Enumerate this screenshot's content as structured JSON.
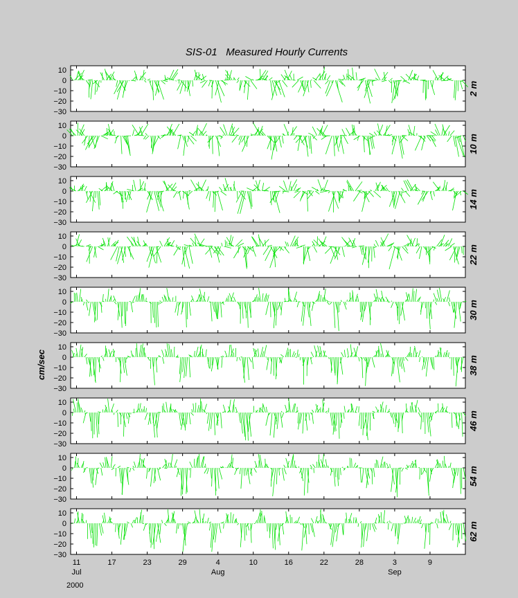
{
  "title": "SIS-01   Measured Hourly Currents",
  "ylabel": "cm/sec",
  "year": "2000",
  "chart_data": {
    "type": "stick-vector",
    "title": "SIS-01   Measured Hourly Currents",
    "ylabel": "cm/sec",
    "ylim": [
      -30,
      14
    ],
    "yticks": [
      10,
      0,
      -10,
      -20,
      -30
    ],
    "x_start": "2000-07-10",
    "x_end": "2000-09-15",
    "xticks": [
      {
        "date": "2000-07-11",
        "label": "11",
        "month": "Jul"
      },
      {
        "date": "2000-07-17",
        "label": "17",
        "month": ""
      },
      {
        "date": "2000-07-23",
        "label": "23",
        "month": ""
      },
      {
        "date": "2000-07-29",
        "label": "29",
        "month": ""
      },
      {
        "date": "2000-08-04",
        "label": "4",
        "month": "Aug"
      },
      {
        "date": "2000-08-10",
        "label": "10",
        "month": ""
      },
      {
        "date": "2000-08-16",
        "label": "16",
        "month": ""
      },
      {
        "date": "2000-08-22",
        "label": "22",
        "month": ""
      },
      {
        "date": "2000-08-28",
        "label": "28",
        "month": ""
      },
      {
        "date": "2000-09-03",
        "label": "3",
        "month": "Sep"
      },
      {
        "date": "2000-09-09",
        "label": "9",
        "month": ""
      }
    ],
    "stick_color": "#00e000",
    "panels": [
      {
        "depth": "2 m"
      },
      {
        "depth": "10 m"
      },
      {
        "depth": "14 m"
      },
      {
        "depth": "22 m"
      },
      {
        "depth": "30 m"
      },
      {
        "depth": "38 m"
      },
      {
        "depth": "46 m"
      },
      {
        "depth": "54 m"
      },
      {
        "depth": "62 m"
      }
    ]
  }
}
